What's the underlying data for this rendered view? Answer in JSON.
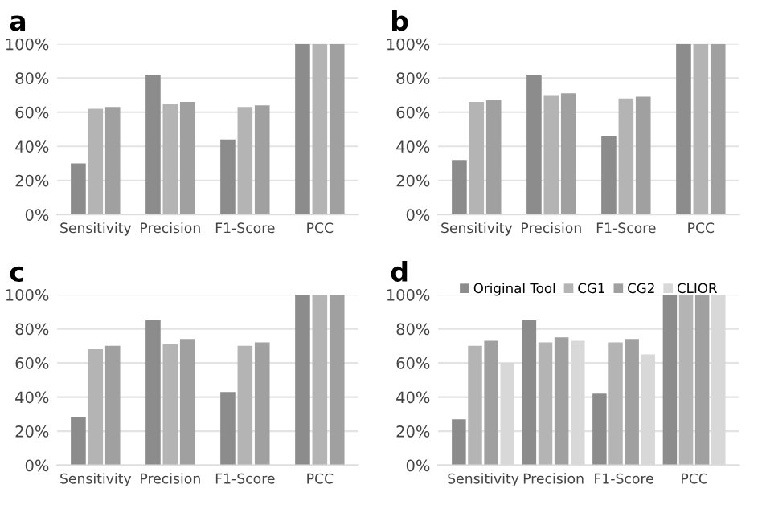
{
  "chart_data": [
    {
      "type": "bar",
      "title": "a",
      "categories": [
        "Sensitivity",
        "Precision",
        "F1-Score",
        "PCC"
      ],
      "ylim": [
        0,
        100
      ],
      "yticks": [
        {
          "value": 0,
          "label": "0%"
        },
        {
          "value": 20,
          "label": "20%"
        },
        {
          "value": 40,
          "label": "40%"
        },
        {
          "value": 60,
          "label": "60%"
        },
        {
          "value": 80,
          "label": "80%"
        },
        {
          "value": 100,
          "label": "100%"
        }
      ],
      "grid": "y",
      "legend": false,
      "series": [
        {
          "color": "#8c8c8c",
          "values": [
            30,
            82,
            44,
            100
          ]
        },
        {
          "color": "#b4b4b4",
          "values": [
            62,
            65,
            63,
            100
          ]
        },
        {
          "color": "#a0a0a0",
          "values": [
            63,
            66,
            64,
            100
          ]
        }
      ]
    },
    {
      "type": "bar",
      "title": "b",
      "categories": [
        "Sensitivity",
        "Precision",
        "F1-Score",
        "PCC"
      ],
      "ylim": [
        0,
        100
      ],
      "yticks": [
        {
          "value": 0,
          "label": "0%"
        },
        {
          "value": 20,
          "label": "20%"
        },
        {
          "value": 40,
          "label": "40%"
        },
        {
          "value": 60,
          "label": "60%"
        },
        {
          "value": 80,
          "label": "80%"
        },
        {
          "value": 100,
          "label": "100%"
        }
      ],
      "grid": "y",
      "legend": false,
      "series": [
        {
          "color": "#8c8c8c",
          "values": [
            32,
            82,
            46,
            100
          ]
        },
        {
          "color": "#b4b4b4",
          "values": [
            66,
            70,
            68,
            100
          ]
        },
        {
          "color": "#a0a0a0",
          "values": [
            67,
            71,
            69,
            100
          ]
        }
      ]
    },
    {
      "type": "bar",
      "title": "c",
      "categories": [
        "Sensitivity",
        "Precision",
        "F1-Score",
        "PCC"
      ],
      "ylim": [
        0,
        100
      ],
      "yticks": [
        {
          "value": 0,
          "label": "0%"
        },
        {
          "value": 20,
          "label": "20%"
        },
        {
          "value": 40,
          "label": "40%"
        },
        {
          "value": 60,
          "label": "60%"
        },
        {
          "value": 80,
          "label": "80%"
        },
        {
          "value": 100,
          "label": "100%"
        }
      ],
      "grid": "y",
      "legend": false,
      "series": [
        {
          "color": "#8c8c8c",
          "values": [
            28,
            85,
            43,
            100
          ]
        },
        {
          "color": "#b4b4b4",
          "values": [
            68,
            71,
            70,
            100
          ]
        },
        {
          "color": "#a0a0a0",
          "values": [
            70,
            74,
            72,
            100
          ]
        }
      ]
    },
    {
      "type": "bar",
      "title": "d",
      "categories": [
        "Sensitivity",
        "Precision",
        "F1-Score",
        "PCC"
      ],
      "ylim": [
        0,
        100
      ],
      "yticks": [
        {
          "value": 0,
          "label": "0%"
        },
        {
          "value": 20,
          "label": "20%"
        },
        {
          "value": 40,
          "label": "40%"
        },
        {
          "value": 60,
          "label": "60%"
        },
        {
          "value": 80,
          "label": "80%"
        },
        {
          "value": 100,
          "label": "100%"
        }
      ],
      "grid": "y",
      "legend": "top",
      "series": [
        {
          "name": "Original Tool",
          "color": "#8c8c8c",
          "values": [
            27,
            85,
            42,
            100
          ]
        },
        {
          "name": "CG1",
          "color": "#b4b4b4",
          "values": [
            70,
            72,
            72,
            100
          ]
        },
        {
          "name": "CG2",
          "color": "#a0a0a0",
          "values": [
            73,
            75,
            74,
            100
          ]
        },
        {
          "name": "CLIOR",
          "color": "#d8d8d8",
          "values": [
            60,
            73,
            65,
            100
          ]
        }
      ]
    }
  ]
}
